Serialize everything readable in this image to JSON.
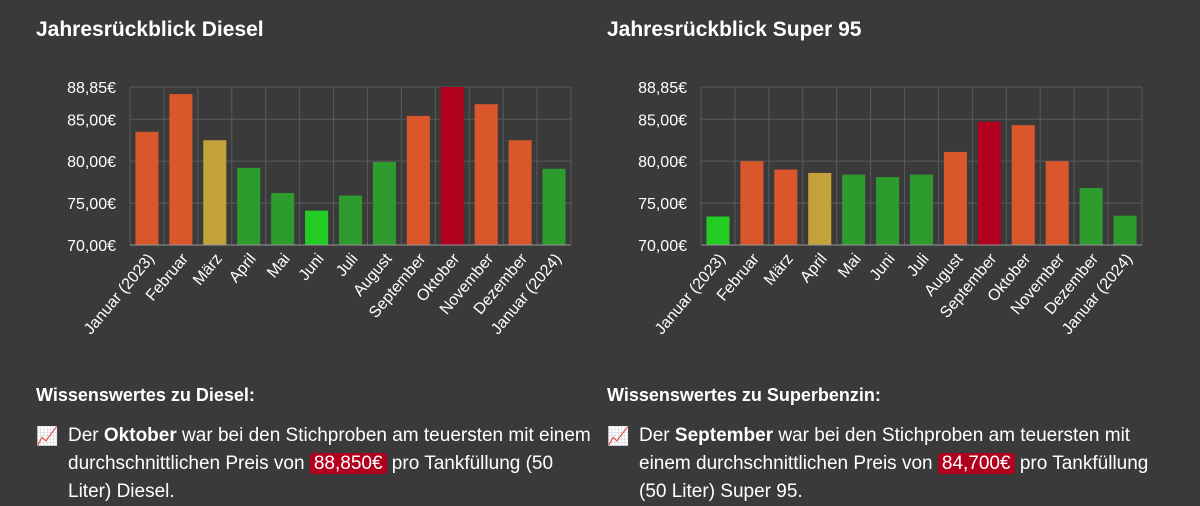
{
  "charts": [
    {
      "title": "Jahresrückblick Diesel",
      "info_title": "Wissenswertes zu Diesel:",
      "info": {
        "icon": "chart-increasing-icon",
        "prefix": "Der ",
        "month": "Oktober",
        "middle": " war bei den Stichproben am teuersten mit einem durchschnittlichen Preis von ",
        "price": "88,850€",
        "suffix": " pro Tankfüllung (50 Liter) Diesel."
      }
    },
    {
      "title": "Jahresrückblick Super 95",
      "info_title": "Wissenswertes zu Superbenzin:",
      "info": {
        "icon": "chart-increasing-icon",
        "prefix": "Der ",
        "month": "September",
        "middle": " war bei den Stichproben am teuersten mit einem durchschnittlichen Preis von ",
        "price": "84,700€",
        "suffix": " pro Tankfüllung (50 Liter) Super 95."
      }
    }
  ],
  "chart_data": [
    {
      "type": "bar",
      "title": "Jahresrückblick Diesel",
      "categories": [
        "Januar (2023)",
        "Februar",
        "März",
        "April",
        "Mai",
        "Juni",
        "Juli",
        "August",
        "September",
        "Oktober",
        "November",
        "Dezember",
        "Januar (2024)"
      ],
      "values": [
        83.5,
        88.0,
        82.5,
        79.2,
        76.2,
        74.1,
        75.9,
        79.9,
        85.4,
        88.85,
        86.8,
        82.5,
        79.1
      ],
      "bar_colors": [
        "#d9572b",
        "#d9572b",
        "#c4a23a",
        "#2e9b2e",
        "#2e9b2e",
        "#22cc22",
        "#2e9b2e",
        "#2e9b2e",
        "#d9572b",
        "#b0001e",
        "#d9572b",
        "#d9572b",
        "#2e9b2e"
      ],
      "label_colors": [
        "#ffffff",
        "#ffffff",
        "#ffffff",
        "#ffffff",
        "#ffffff",
        "#22cc22",
        "#ffffff",
        "#ffffff",
        "#ffffff",
        "#b0001e",
        "#ffffff",
        "#ffffff",
        "#ffffff"
      ],
      "yticks": [
        "70,00€",
        "75,00€",
        "80,00€",
        "85,00€",
        "88,85€"
      ],
      "ytick_values": [
        70,
        75,
        80,
        85,
        88.85
      ],
      "ylim": [
        70,
        88.85
      ],
      "grid": true
    },
    {
      "type": "bar",
      "title": "Jahresrückblick Super 95",
      "categories": [
        "Januar (2023)",
        "Februar",
        "März",
        "April",
        "Mai",
        "Juni",
        "Juli",
        "August",
        "September",
        "Oktober",
        "November",
        "Dezember",
        "Januar (2024)"
      ],
      "values": [
        73.4,
        80.0,
        79.0,
        78.6,
        78.4,
        78.1,
        78.4,
        81.1,
        84.7,
        84.3,
        80.0,
        76.8,
        73.5
      ],
      "bar_colors": [
        "#22cc22",
        "#d9572b",
        "#d9572b",
        "#c4a23a",
        "#2e9b2e",
        "#2e9b2e",
        "#2e9b2e",
        "#d9572b",
        "#b0001e",
        "#d9572b",
        "#d9572b",
        "#2e9b2e",
        "#2e9b2e"
      ],
      "label_colors": [
        "#22cc22",
        "#ffffff",
        "#ffffff",
        "#ffffff",
        "#ffffff",
        "#ffffff",
        "#ffffff",
        "#ffffff",
        "#b0001e",
        "#ffffff",
        "#ffffff",
        "#ffffff",
        "#ffffff"
      ],
      "yticks": [
        "70,00€",
        "75,00€",
        "80,00€",
        "85,00€",
        "88,85€"
      ],
      "ytick_values": [
        70,
        75,
        80,
        85,
        88.85
      ],
      "ylim": [
        70,
        88.85
      ],
      "grid": true
    }
  ]
}
